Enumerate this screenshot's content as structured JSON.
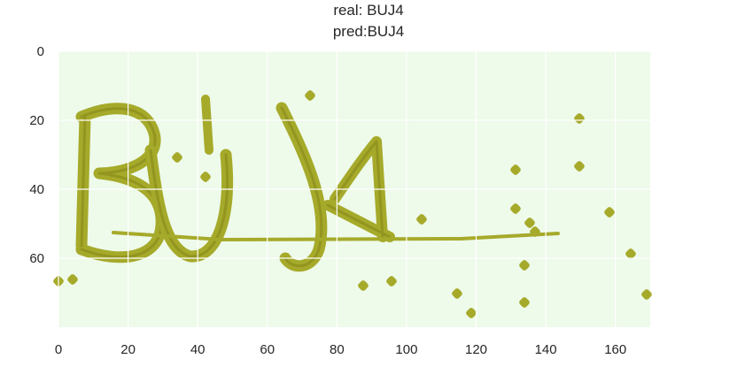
{
  "title": {
    "line1": "real: BUJ4",
    "line2": "pred:BUJ4"
  },
  "image": {
    "captcha_text": "BUJ4",
    "colors": {
      "background": "#eefaea",
      "foreground": "#a6aa2a",
      "dark": "#7c7d14",
      "grid": "#ffffff"
    }
  },
  "chart_data": {
    "type": "image",
    "xlim": [
      0,
      170
    ],
    "ylim": [
      80,
      0
    ],
    "x_ticks": [
      "0",
      "20",
      "40",
      "60",
      "80",
      "100",
      "120",
      "140",
      "160"
    ],
    "y_ticks": [
      "0",
      "20",
      "40",
      "60"
    ],
    "grid": true
  }
}
